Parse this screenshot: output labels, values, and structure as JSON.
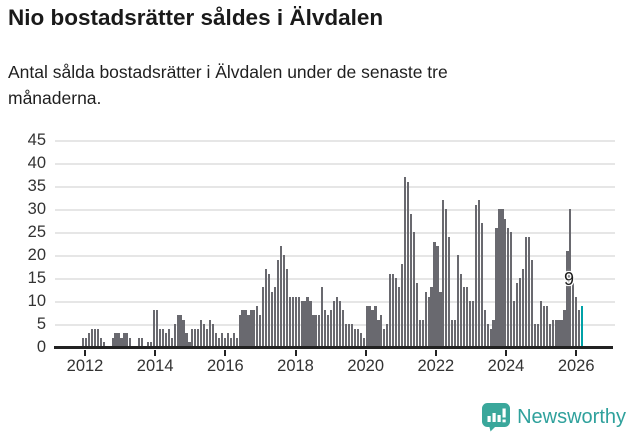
{
  "header": {
    "title": "Nio bostadsrätter såldes i Älvdalen",
    "subtitle_lines": [
      "Antal sålda bostadsrätter i Älvdalen under de senaste tre",
      "månaderna."
    ]
  },
  "footer": {
    "brand": "Newsworthy",
    "logo_icon": "speech-bubble-bar-chart-icon",
    "brand_color": "#2fa19c",
    "icon_color": "#3aa79b"
  },
  "chart_data": {
    "type": "bar",
    "title": "Nio bostadsrätter såldes i Älvdalen",
    "subtitle": "Antal sålda bostadsrätter i Älvdalen under de senaste tre månaderna.",
    "xlabel": "",
    "ylabel": "",
    "ylim": [
      0,
      45
    ],
    "yticks": [
      0,
      5,
      10,
      15,
      20,
      25,
      30,
      35,
      40,
      45
    ],
    "xtick_labels": [
      "2012",
      "2014",
      "2016",
      "2018",
      "2020",
      "2022",
      "2024",
      "2026"
    ],
    "grid": "horizontal",
    "legend": "none",
    "frequency": "monthly",
    "start_month": "2011-12",
    "end_month": "2026-01",
    "bar_color": "#69696f",
    "highlight_color": "#00a1a7",
    "values": [
      2,
      2,
      3,
      4,
      4,
      4,
      2,
      1,
      0,
      0,
      2,
      3,
      3,
      2,
      3,
      3,
      2,
      0,
      0,
      2,
      2,
      0,
      1,
      1,
      8,
      8,
      4,
      4,
      3,
      4,
      2,
      5,
      7,
      7,
      6,
      3,
      1,
      4,
      4,
      4,
      6,
      5,
      4,
      6,
      5,
      3,
      2,
      3,
      2,
      3,
      2,
      3,
      2,
      7,
      8,
      8,
      7,
      8,
      8,
      9,
      7,
      13,
      17,
      16,
      12,
      13,
      19,
      22,
      20,
      17,
      11,
      11,
      11,
      11,
      10,
      10,
      11,
      10,
      7,
      7,
      7,
      13,
      8,
      7,
      8,
      10,
      11,
      10,
      8,
      5,
      5,
      5,
      4,
      4,
      3,
      2,
      9,
      9,
      8,
      9,
      6,
      7,
      4,
      5,
      16,
      16,
      15,
      13,
      18,
      37,
      36,
      29,
      25,
      14,
      6,
      6,
      12,
      11,
      13,
      23,
      22,
      12,
      32,
      30,
      24,
      6,
      6,
      20,
      16,
      13,
      13,
      10,
      10,
      31,
      32,
      27,
      8,
      5,
      4,
      6,
      26,
      30,
      30,
      28,
      26,
      25,
      10,
      14,
      15,
      17,
      24,
      24,
      19,
      5,
      5,
      10,
      9,
      9,
      5,
      6,
      6,
      6,
      6,
      8,
      21,
      30,
      14,
      11,
      8,
      9
    ],
    "annotation": {
      "label": "9",
      "month": "2026-01",
      "value": 9
    }
  }
}
